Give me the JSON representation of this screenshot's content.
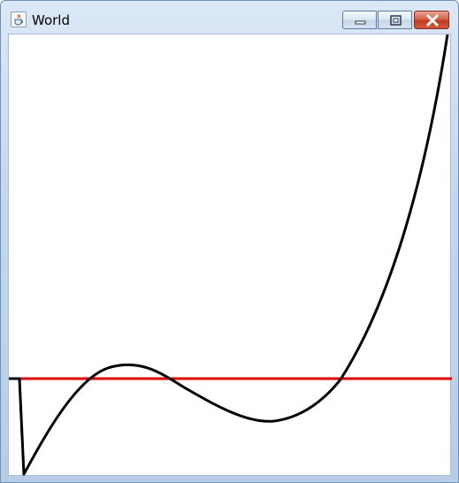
{
  "window": {
    "title": "World",
    "title_icon": "java-cup-icon",
    "controls": {
      "minimize_icon": "minimize-icon",
      "maximize_icon": "maximize-icon",
      "close_icon": "close-icon"
    }
  },
  "colors": {
    "curve": "#000000",
    "baseline": "#e00000",
    "close_button": "#c94530"
  }
}
